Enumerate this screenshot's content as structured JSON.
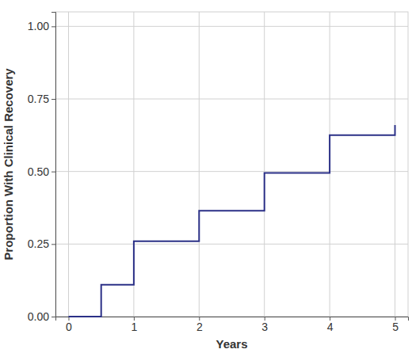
{
  "chart_data": {
    "type": "line",
    "x_label": "Years",
    "y_label": "Proportion With Clinical Recovery",
    "x": [
      0,
      0.5,
      1,
      2,
      3,
      4,
      5
    ],
    "series": [
      {
        "color": "#2b3087",
        "line_style": "step",
        "values": [
          0,
          0.11,
          0.26,
          0.365,
          0.495,
          0.625,
          0.66
        ]
      }
    ],
    "xlim": [
      -0.2,
      5.2
    ],
    "ylim": [
      0,
      1.05
    ],
    "xticks": [
      0,
      1,
      2,
      3,
      4,
      5
    ],
    "yticks": [
      {
        "value": 0,
        "label": "0.00"
      },
      {
        "value": 0.25,
        "label": "0.25"
      },
      {
        "value": 0.5,
        "label": "0.50"
      },
      {
        "value": 0.75,
        "label": "0.75"
      },
      {
        "value": 1,
        "label": "1.00"
      }
    ],
    "grid": true
  }
}
